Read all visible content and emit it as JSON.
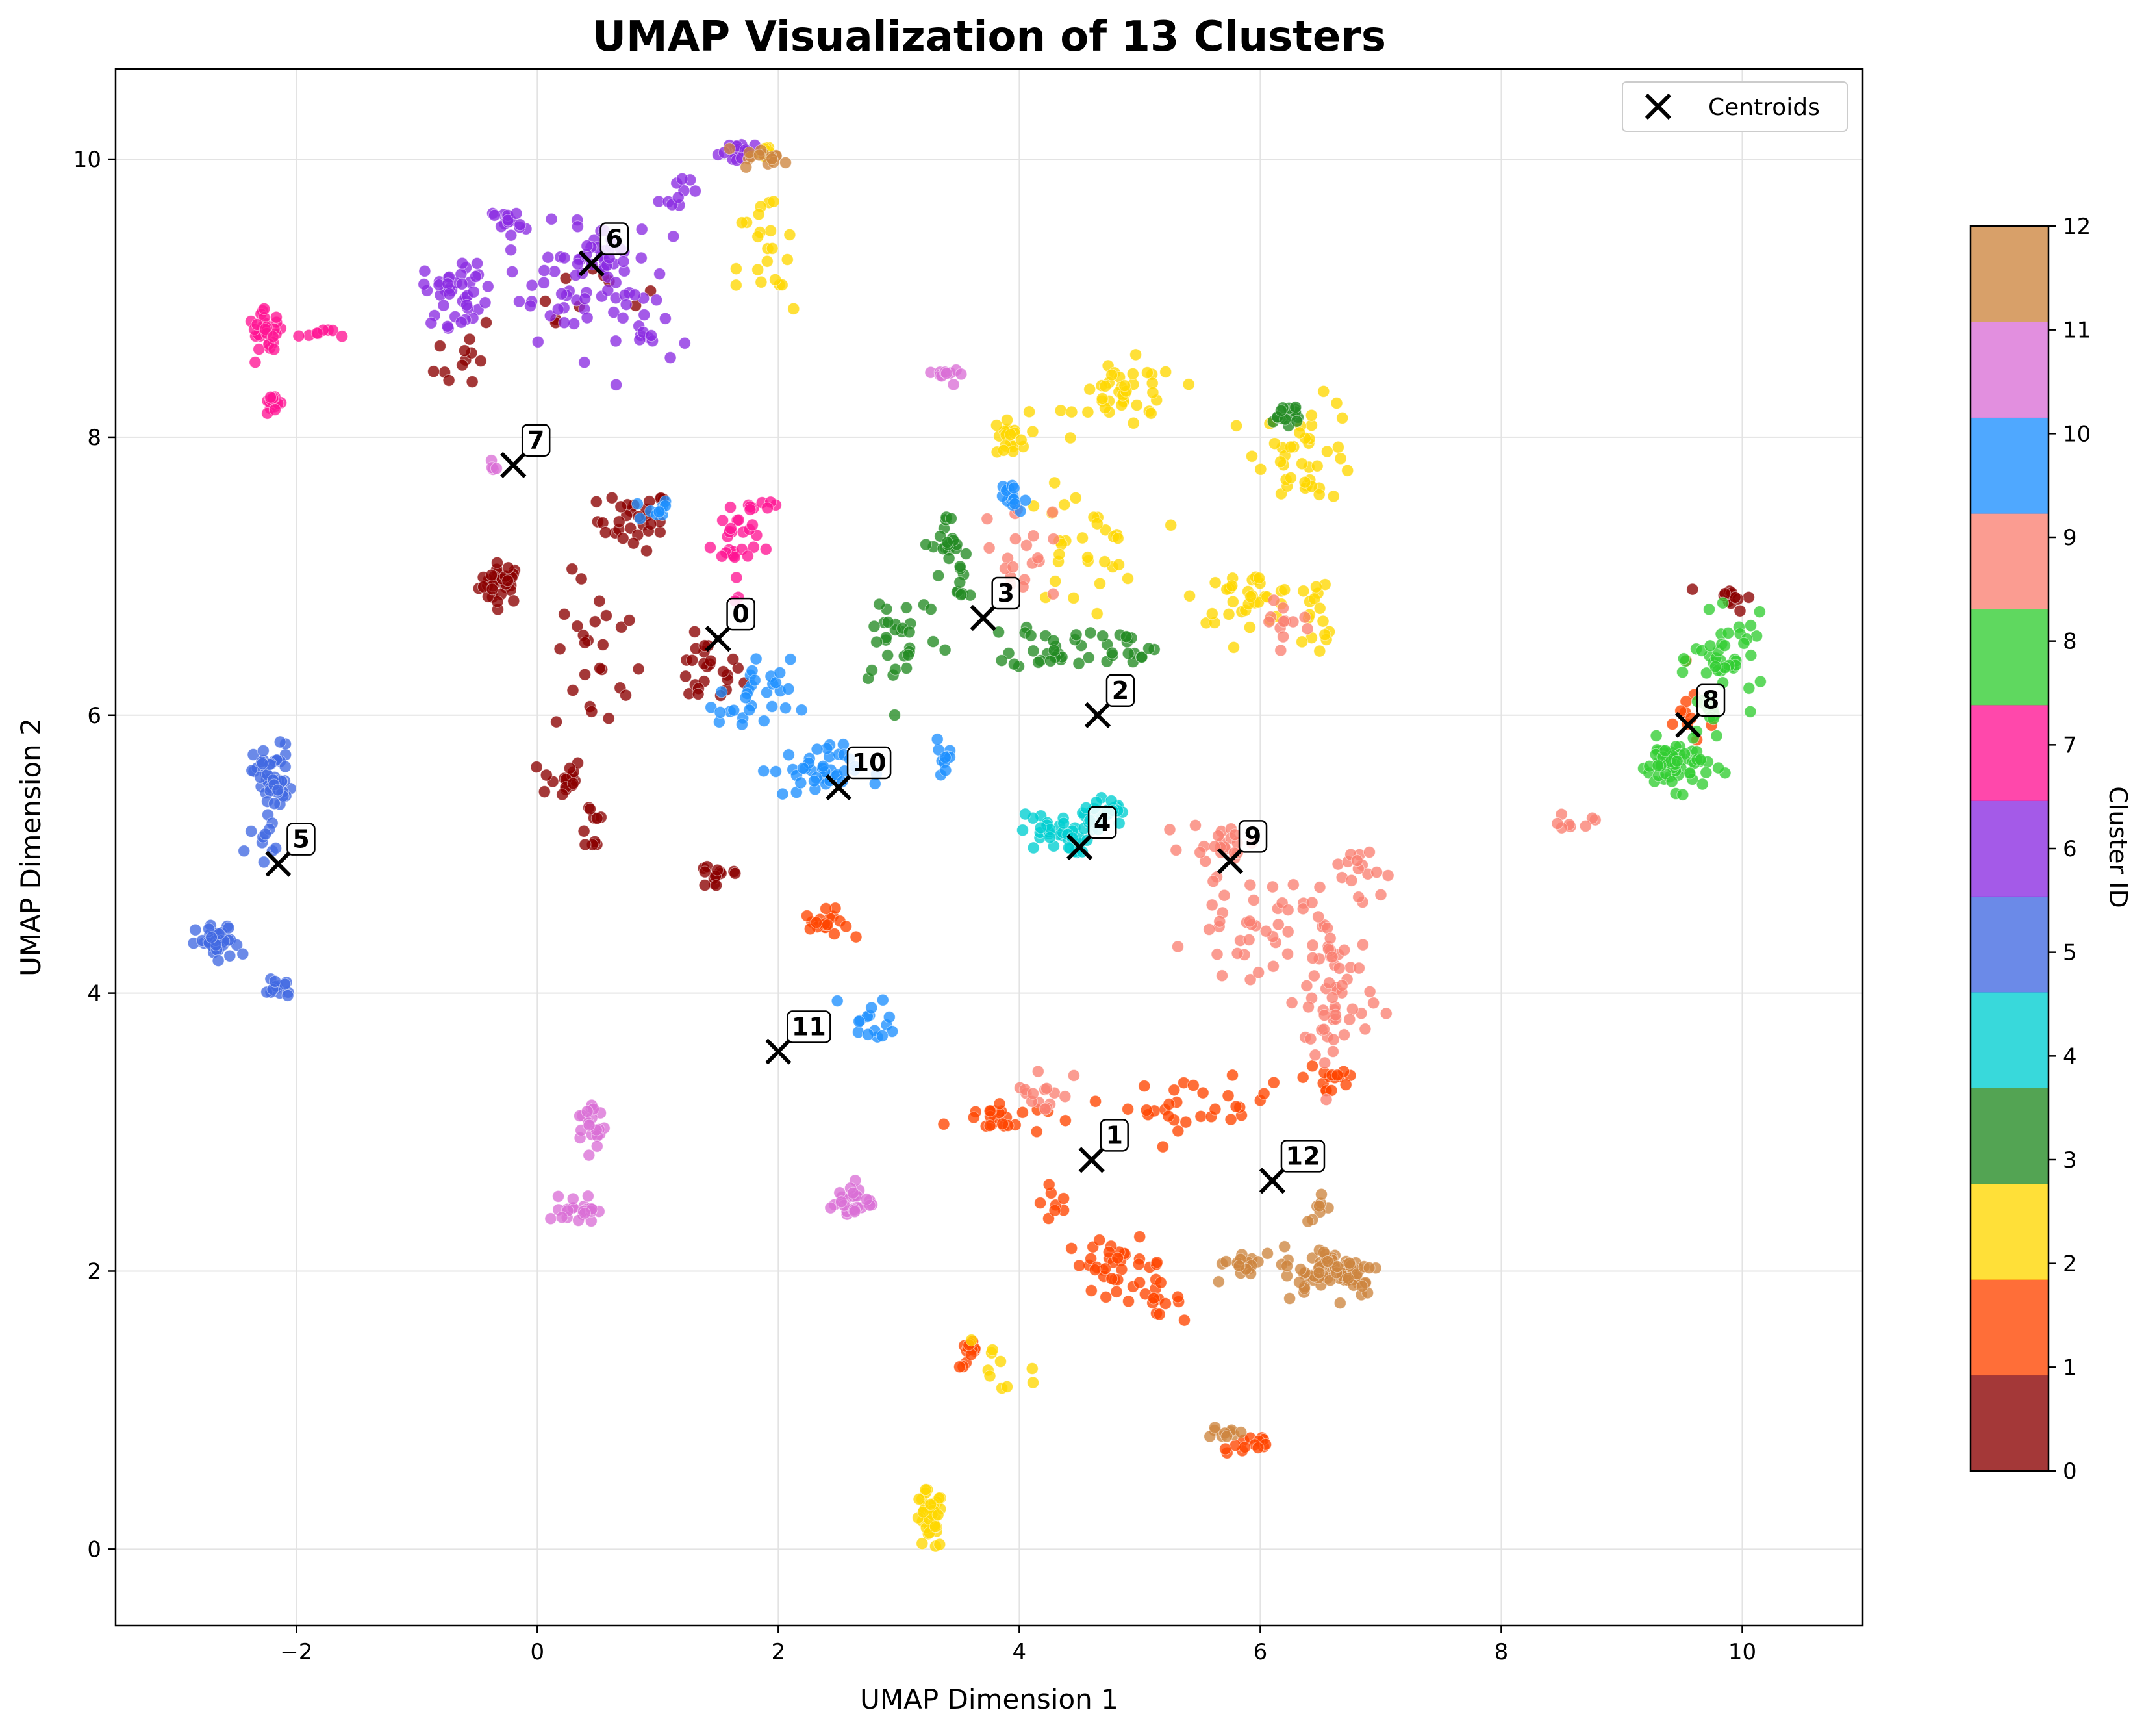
{
  "chart_data": {
    "type": "scatter",
    "title": "UMAP Visualization of 13 Clusters",
    "xlabel": "UMAP Dimension 1",
    "ylabel": "UMAP Dimension 2",
    "xlim": [
      -3.5,
      11
    ],
    "ylim": [
      -0.55,
      10.65
    ],
    "xticks": [
      -2,
      0,
      2,
      4,
      6,
      8,
      10
    ],
    "yticks": [
      0,
      2,
      4,
      6,
      8,
      10
    ],
    "tick_labels_x": [
      "−2",
      "0",
      "2",
      "4",
      "6",
      "8",
      "10"
    ],
    "tick_labels_y": [
      "0",
      "2",
      "4",
      "6",
      "8",
      "10"
    ],
    "grid": true,
    "legend": {
      "position": "top-right",
      "label": "Centroids"
    },
    "colorbar": {
      "label": "Cluster ID",
      "range": [
        0,
        12
      ],
      "ticks": [
        "0",
        "1",
        "2",
        "3",
        "4",
        "5",
        "6",
        "7",
        "8",
        "9",
        "10",
        "11",
        "12"
      ],
      "colors": [
        "#8b0000",
        "#ff4500",
        "#ffd700",
        "#228b22",
        "#00ced1",
        "#4169e1",
        "#8a2be2",
        "#ff1493",
        "#32cd32",
        "#fa8072",
        "#1e90ff",
        "#da70d6",
        "#cd853f"
      ]
    },
    "centroids": [
      {
        "label": "0",
        "x": 1.5,
        "y": 6.55
      },
      {
        "label": "1",
        "x": 4.6,
        "y": 2.8
      },
      {
        "label": "2",
        "x": 4.65,
        "y": 6.0
      },
      {
        "label": "3",
        "x": 3.7,
        "y": 6.7
      },
      {
        "label": "4",
        "x": 4.5,
        "y": 5.05
      },
      {
        "label": "5",
        "x": -2.15,
        "y": 4.93
      },
      {
        "label": "6",
        "x": 0.45,
        "y": 9.25
      },
      {
        "label": "7",
        "x": -0.2,
        "y": 7.8
      },
      {
        "label": "8",
        "x": 9.55,
        "y": 5.93
      },
      {
        "label": "9",
        "x": 5.75,
        "y": 4.95
      },
      {
        "label": "10",
        "x": 2.5,
        "y": 5.48
      },
      {
        "label": "11",
        "x": 2.0,
        "y": 3.58
      },
      {
        "label": "12",
        "x": 6.1,
        "y": 2.65
      }
    ],
    "cluster_regions": [
      {
        "cluster": 0,
        "groups": [
          [
            -0.3,
            6.95,
            0.15,
            0.12,
            35
          ],
          [
            0.8,
            7.4,
            0.25,
            0.18,
            30
          ],
          [
            1.4,
            6.3,
            0.25,
            0.2,
            25
          ],
          [
            0.5,
            6.4,
            0.3,
            0.5,
            25
          ],
          [
            0.2,
            5.55,
            0.15,
            0.12,
            18
          ],
          [
            0.45,
            5.2,
            0.1,
            0.2,
            10
          ],
          [
            1.5,
            4.85,
            0.2,
            0.1,
            14
          ],
          [
            -0.6,
            8.6,
            0.2,
            0.25,
            12
          ],
          [
            9.9,
            6.85,
            0.15,
            0.08,
            12
          ],
          [
            0.4,
            9.1,
            0.4,
            0.2,
            10
          ]
        ]
      },
      {
        "cluster": 1,
        "groups": [
          [
            2.4,
            4.5,
            0.15,
            0.08,
            20
          ],
          [
            3.8,
            3.1,
            0.35,
            0.1,
            25
          ],
          [
            5.5,
            3.2,
            0.5,
            0.15,
            30
          ],
          [
            4.8,
            2.05,
            0.35,
            0.15,
            35
          ],
          [
            5.1,
            1.8,
            0.2,
            0.1,
            15
          ],
          [
            3.6,
            1.4,
            0.08,
            0.08,
            14
          ],
          [
            5.9,
            0.75,
            0.2,
            0.08,
            14
          ],
          [
            6.6,
            3.4,
            0.2,
            0.15,
            15
          ],
          [
            4.3,
            2.5,
            0.1,
            0.2,
            8
          ],
          [
            9.6,
            6.0,
            0.25,
            0.2,
            10
          ]
        ]
      },
      {
        "cluster": 2,
        "groups": [
          [
            3.25,
            0.2,
            0.1,
            0.18,
            40
          ],
          [
            4.9,
            8.3,
            0.35,
            0.2,
            40
          ],
          [
            6.4,
            7.9,
            0.35,
            0.3,
            40
          ],
          [
            5.9,
            6.85,
            0.35,
            0.15,
            35
          ],
          [
            4.5,
            7.2,
            0.4,
            0.35,
            30
          ],
          [
            3.9,
            8.0,
            0.15,
            0.15,
            20
          ],
          [
            1.9,
            9.2,
            0.2,
            0.5,
            22
          ],
          [
            1.9,
            10.05,
            0.1,
            0.05,
            10
          ],
          [
            3.8,
            1.3,
            0.3,
            0.4,
            10
          ],
          [
            6.5,
            6.7,
            0.15,
            0.3,
            15
          ]
        ]
      },
      {
        "cluster": 3,
        "groups": [
          [
            3.0,
            6.6,
            0.3,
            0.35,
            30
          ],
          [
            3.4,
            7.2,
            0.1,
            0.2,
            20
          ],
          [
            4.3,
            6.5,
            0.3,
            0.15,
            30
          ],
          [
            4.9,
            6.5,
            0.2,
            0.1,
            15
          ],
          [
            6.2,
            8.15,
            0.15,
            0.1,
            15
          ],
          [
            3.5,
            6.95,
            0.15,
            0.15,
            10
          ]
        ]
      },
      {
        "cluster": 4,
        "groups": [
          [
            4.3,
            5.15,
            0.25,
            0.12,
            40
          ],
          [
            4.7,
            5.3,
            0.15,
            0.1,
            20
          ]
        ]
      },
      {
        "cluster": 5,
        "groups": [
          [
            -2.2,
            5.55,
            0.13,
            0.2,
            50
          ],
          [
            -2.65,
            4.35,
            0.15,
            0.12,
            35
          ],
          [
            -2.15,
            4.05,
            0.1,
            0.08,
            15
          ],
          [
            -2.3,
            5.1,
            0.1,
            0.1,
            10
          ]
        ]
      },
      {
        "cluster": 6,
        "groups": [
          [
            -0.65,
            9.05,
            0.25,
            0.2,
            40
          ],
          [
            0.5,
            9.3,
            0.4,
            0.2,
            45
          ],
          [
            0.1,
            9.0,
            0.3,
            0.2,
            20
          ],
          [
            1.7,
            10.05,
            0.15,
            0.06,
            20
          ],
          [
            0.9,
            8.8,
            0.3,
            0.25,
            25
          ],
          [
            -0.25,
            9.55,
            0.1,
            0.08,
            15
          ],
          [
            1.2,
            9.8,
            0.15,
            0.1,
            10
          ]
        ]
      },
      {
        "cluster": 7,
        "groups": [
          [
            -2.25,
            8.75,
            0.12,
            0.12,
            30
          ],
          [
            -2.2,
            8.25,
            0.06,
            0.06,
            14
          ],
          [
            1.65,
            7.25,
            0.15,
            0.3,
            30
          ],
          [
            -1.8,
            8.75,
            0.15,
            0.03,
            8
          ],
          [
            1.8,
            7.5,
            0.15,
            0.05,
            6
          ]
        ]
      },
      {
        "cluster": 8,
        "groups": [
          [
            9.45,
            5.65,
            0.25,
            0.15,
            60
          ],
          [
            9.9,
            6.4,
            0.25,
            0.25,
            40
          ],
          [
            9.7,
            6.0,
            0.15,
            0.2,
            15
          ]
        ]
      },
      {
        "cluster": 9,
        "groups": [
          [
            6.6,
            4.0,
            0.25,
            0.6,
            60
          ],
          [
            5.9,
            4.5,
            0.4,
            0.3,
            40
          ],
          [
            5.7,
            5.1,
            0.25,
            0.1,
            20
          ],
          [
            4.0,
            7.2,
            0.25,
            0.3,
            20
          ],
          [
            4.2,
            3.3,
            0.2,
            0.15,
            15
          ],
          [
            6.2,
            6.65,
            0.25,
            0.2,
            12
          ],
          [
            6.8,
            4.9,
            0.2,
            0.15,
            15
          ],
          [
            8.4,
            5.15,
            0.3,
            0.15,
            8
          ]
        ]
      },
      {
        "cluster": 10,
        "groups": [
          [
            2.3,
            5.6,
            0.3,
            0.15,
            40
          ],
          [
            1.8,
            6.1,
            0.25,
            0.25,
            30
          ],
          [
            2.8,
            3.8,
            0.2,
            0.15,
            15
          ],
          [
            3.9,
            7.55,
            0.12,
            0.1,
            14
          ],
          [
            1.0,
            7.5,
            0.15,
            0.1,
            10
          ],
          [
            3.4,
            5.7,
            0.15,
            0.1,
            10
          ]
        ]
      },
      {
        "cluster": 11,
        "groups": [
          [
            0.35,
            2.45,
            0.12,
            0.08,
            25
          ],
          [
            0.45,
            3.05,
            0.1,
            0.15,
            20
          ],
          [
            2.6,
            2.5,
            0.15,
            0.12,
            25
          ],
          [
            3.5,
            8.45,
            0.15,
            0.05,
            10
          ],
          [
            -0.35,
            7.8,
            0.05,
            0.05,
            4
          ]
        ]
      },
      {
        "cluster": 12,
        "groups": [
          [
            6.6,
            2.0,
            0.35,
            0.15,
            70
          ],
          [
            5.9,
            2.05,
            0.25,
            0.1,
            20
          ],
          [
            1.9,
            10.0,
            0.15,
            0.06,
            15
          ],
          [
            5.7,
            0.85,
            0.15,
            0.04,
            10
          ],
          [
            6.5,
            2.45,
            0.1,
            0.1,
            8
          ]
        ]
      }
    ]
  }
}
